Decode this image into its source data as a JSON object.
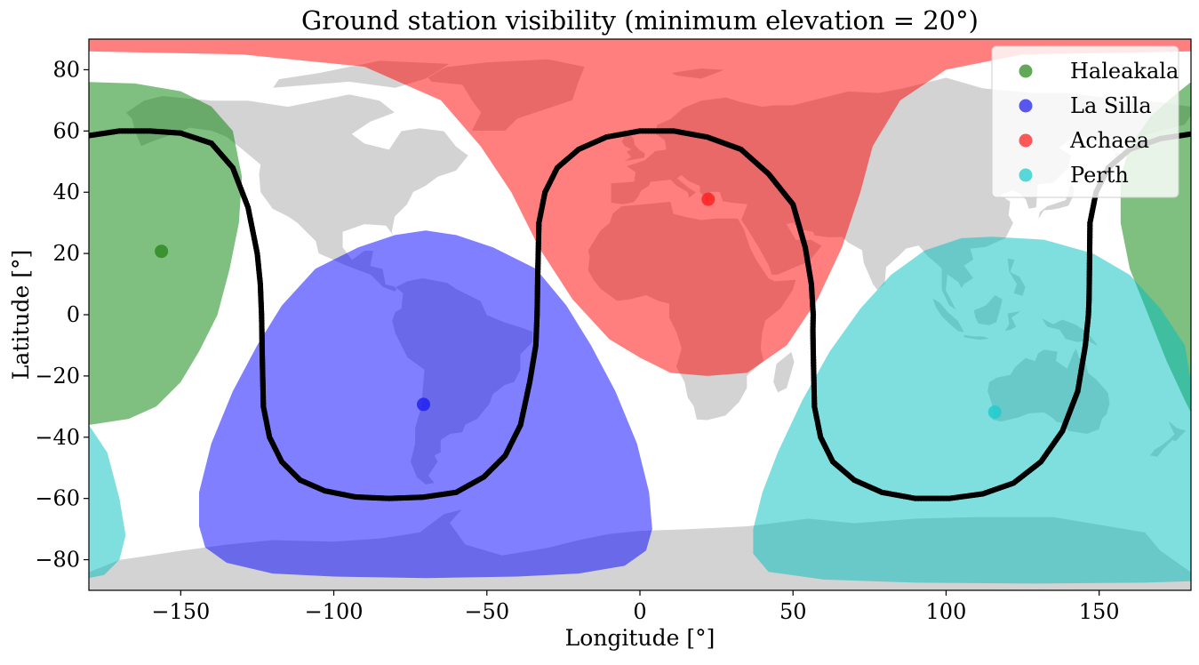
{
  "chart_data": {
    "type": "scatter",
    "title": "Ground station visibility (minimum elevation = 20°)",
    "xlabel": "Longitude [°]",
    "ylabel": "Latitude [°]",
    "xlim": [
      -180,
      180
    ],
    "ylim": [
      -90,
      90
    ],
    "xticks": [
      -150,
      -100,
      -50,
      0,
      50,
      100,
      150
    ],
    "yticks": [
      -80,
      -60,
      -40,
      -20,
      0,
      20,
      40,
      60,
      80
    ],
    "xtick_labels": [
      "−150",
      "−100",
      "−50",
      "0",
      "50",
      "100",
      "150"
    ],
    "ytick_labels": [
      "−80",
      "−60",
      "−40",
      "−20",
      "0",
      "20",
      "40",
      "60",
      "80"
    ],
    "legend_position": "top-right",
    "stations": [
      {
        "name": "Haleakala",
        "lon": -156.3,
        "lat": 20.7,
        "color": "#2e8b22",
        "region_color": "#008000",
        "regions": [
          [
            [
              -180,
              76
            ],
            [
              -165,
              75.5
            ],
            [
              -150,
              73
            ],
            [
              -140,
              68
            ],
            [
              -133,
              60
            ],
            [
              -130,
              45
            ],
            [
              -131,
              30
            ],
            [
              -134,
              15
            ],
            [
              -138,
              0
            ],
            [
              -144,
              -12
            ],
            [
              -150,
              -22
            ],
            [
              -158,
              -30
            ],
            [
              -167,
              -34
            ],
            [
              -180,
              -36
            ]
          ],
          [
            [
              180,
              76
            ],
            [
              175,
              72
            ],
            [
              167,
              65
            ],
            [
              160,
              55
            ],
            [
              157,
              45
            ],
            [
              157,
              30
            ],
            [
              160,
              15
            ],
            [
              166,
              0
            ],
            [
              172,
              -15
            ],
            [
              178,
              -28
            ],
            [
              180,
              -32
            ]
          ]
        ]
      },
      {
        "name": "La Silla",
        "lon": -70.7,
        "lat": -29.3,
        "color": "#2222ee",
        "region_color": "#0000ff",
        "regions": [
          [
            [
              -70,
              27.5
            ],
            [
              -80,
              26
            ],
            [
              -92,
              22
            ],
            [
              -106,
              15
            ],
            [
              -117,
              3
            ],
            [
              -125,
              -10
            ],
            [
              -133,
              -25
            ],
            [
              -140,
              -42
            ],
            [
              -144,
              -58
            ],
            [
              -144,
              -69
            ],
            [
              -142,
              -76
            ],
            [
              -135,
              -81
            ],
            [
              -120,
              -84.5
            ],
            [
              -100,
              -85.5
            ],
            [
              -70,
              -86
            ],
            [
              -40,
              -85.5
            ],
            [
              -20,
              -84.5
            ],
            [
              -5,
              -82
            ],
            [
              2,
              -77
            ],
            [
              4,
              -70
            ],
            [
              3,
              -58
            ],
            [
              -1,
              -42
            ],
            [
              -8,
              -25
            ],
            [
              -16,
              -10
            ],
            [
              -24,
              3
            ],
            [
              -34,
              15
            ],
            [
              -48,
              22
            ],
            [
              -60,
              26
            ]
          ]
        ]
      },
      {
        "name": "Achaea",
        "lon": 22.3,
        "lat": 37.7,
        "color": "#ff2222",
        "region_color": "#ff0000",
        "regions": [
          [
            [
              -180,
              90
            ],
            [
              180,
              90
            ],
            [
              180,
              86
            ],
            [
              125,
              85
            ],
            [
              100,
              80
            ],
            [
              85,
              70
            ],
            [
              76,
              55
            ],
            [
              72,
              40
            ],
            [
              66,
              22
            ],
            [
              58,
              5
            ],
            [
              48,
              -10
            ],
            [
              35,
              -19
            ],
            [
              22,
              -20
            ],
            [
              10,
              -19
            ],
            [
              0,
              -14
            ],
            [
              -10,
              -8
            ],
            [
              -22,
              5
            ],
            [
              -33,
              22
            ],
            [
              -42,
              40
            ],
            [
              -52,
              55
            ],
            [
              -65,
              70
            ],
            [
              -90,
              81
            ],
            [
              -130,
              85
            ],
            [
              -180,
              86
            ]
          ]
        ]
      },
      {
        "name": "Perth",
        "lon": 115.9,
        "lat": -31.8,
        "color": "#22cccc",
        "region_color": "#00bfbf",
        "regions": [
          [
            [
              115,
              25.5
            ],
            [
              105,
              25
            ],
            [
              93,
              21
            ],
            [
              82,
              13
            ],
            [
              72,
              2
            ],
            [
              62,
              -12
            ],
            [
              53,
              -28
            ],
            [
              45,
              -45
            ],
            [
              40,
              -58
            ],
            [
              37,
              -70
            ],
            [
              37,
              -78
            ],
            [
              42,
              -84
            ],
            [
              60,
              -86.5
            ],
            [
              90,
              -87.5
            ],
            [
              130,
              -87.8
            ],
            [
              165,
              -87.5
            ],
            [
              180,
              -87
            ],
            [
              180,
              -22
            ],
            [
              178,
              -10
            ],
            [
              170,
              2
            ],
            [
              160,
              13
            ],
            [
              148,
              20
            ],
            [
              132,
              24.5
            ]
          ],
          [
            [
              -180,
              -36
            ],
            [
              -174,
              -45
            ],
            [
              -170,
              -60
            ],
            [
              -168,
              -72
            ],
            [
              -170,
              -80
            ],
            [
              -175,
              -85
            ],
            [
              -180,
              -86
            ]
          ]
        ]
      }
    ],
    "ground_track": {
      "name": "ground track",
      "color": "#000000",
      "lon": [
        -180,
        -170,
        -160,
        -150,
        -140,
        -133,
        -128,
        -125,
        -124,
        -123.6,
        -123.5,
        -123.4,
        -123,
        -121,
        -117,
        -111,
        -103,
        -93,
        -82,
        -71,
        -60,
        -51,
        -44,
        -39,
        -36,
        -34,
        -33.6,
        -33.5,
        -33.4,
        -33,
        -31,
        -27,
        -20,
        -11,
        0,
        11,
        22,
        33,
        42,
        50,
        54,
        56,
        56.6,
        56.5,
        56.6,
        57,
        59,
        63,
        70,
        79,
        90,
        101,
        112,
        122,
        131,
        138,
        143,
        145.5,
        146.5,
        146.7,
        146.8,
        147,
        149,
        153,
        160,
        170,
        180
      ],
      "lat": [
        58.5,
        60,
        60,
        59.3,
        56,
        48,
        35,
        20,
        10,
        0,
        -5,
        -12,
        -30,
        -40,
        -48,
        -54,
        -57.5,
        -59.5,
        -60,
        -59.6,
        -58,
        -53,
        -46,
        -36,
        -22,
        -10,
        0,
        5,
        12,
        30,
        40,
        48,
        54,
        58,
        60,
        60,
        58,
        54,
        46,
        36,
        22,
        10,
        0,
        -5,
        -12,
        -30,
        -40,
        -48,
        -54,
        -58,
        -60,
        -60,
        -58.5,
        -55,
        -48,
        -38,
        -25,
        -10,
        0,
        5,
        12,
        30,
        40,
        48,
        54,
        57.5,
        59
      ]
    },
    "basemap_label": "world map (land masses)"
  }
}
